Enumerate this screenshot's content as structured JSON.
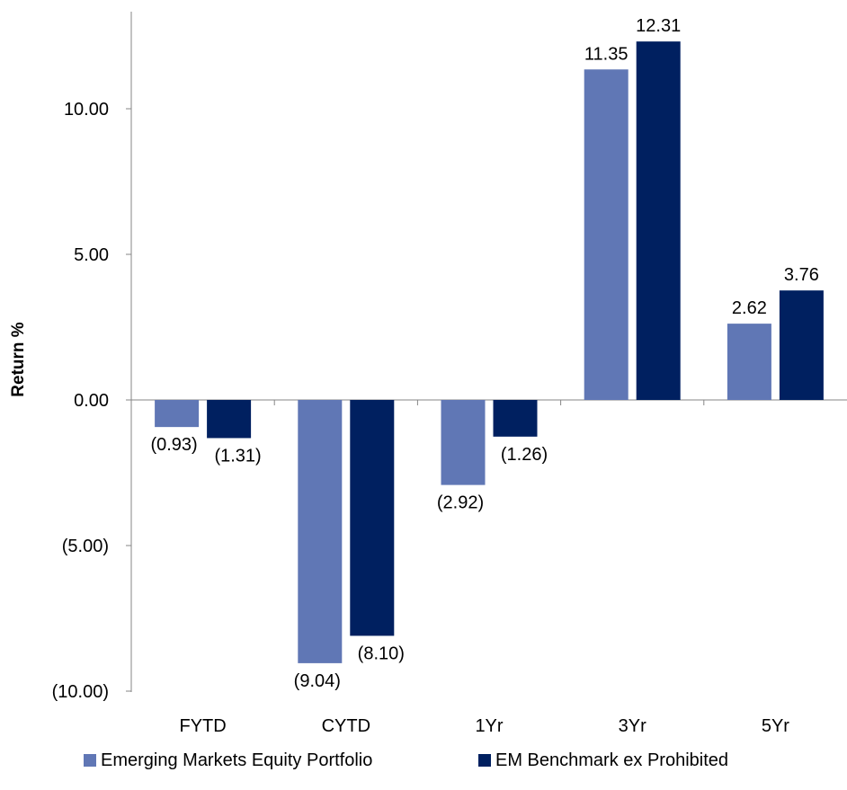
{
  "chart_data": {
    "type": "bar",
    "categories": [
      "FYTD",
      "CYTD",
      "1Yr",
      "3Yr",
      "5Yr"
    ],
    "series": [
      {
        "name": "Emerging Markets Equity Portfolio",
        "values": [
          -0.93,
          -9.04,
          -2.92,
          11.35,
          2.62
        ],
        "labels": [
          "(0.93)",
          "(9.04)",
          "(2.92)",
          "11.35",
          "2.62"
        ],
        "color": "#6077B5"
      },
      {
        "name": "EM Benchmark ex Prohibited",
        "values": [
          -1.31,
          -8.1,
          -1.26,
          12.31,
          3.76
        ],
        "labels": [
          "(1.31)",
          "(8.10)",
          "(1.26)",
          "12.31",
          "3.76"
        ],
        "color": "#002060"
      }
    ],
    "ylabel": "Return %",
    "ylim": [
      -10,
      13
    ],
    "yticks": [
      -10,
      -5,
      0,
      5,
      10
    ],
    "ytick_labels": [
      "(10.00)",
      "(5.00)",
      "0.00",
      "5.00",
      "10.00"
    ],
    "grid": false,
    "legend_position": "bottom"
  }
}
